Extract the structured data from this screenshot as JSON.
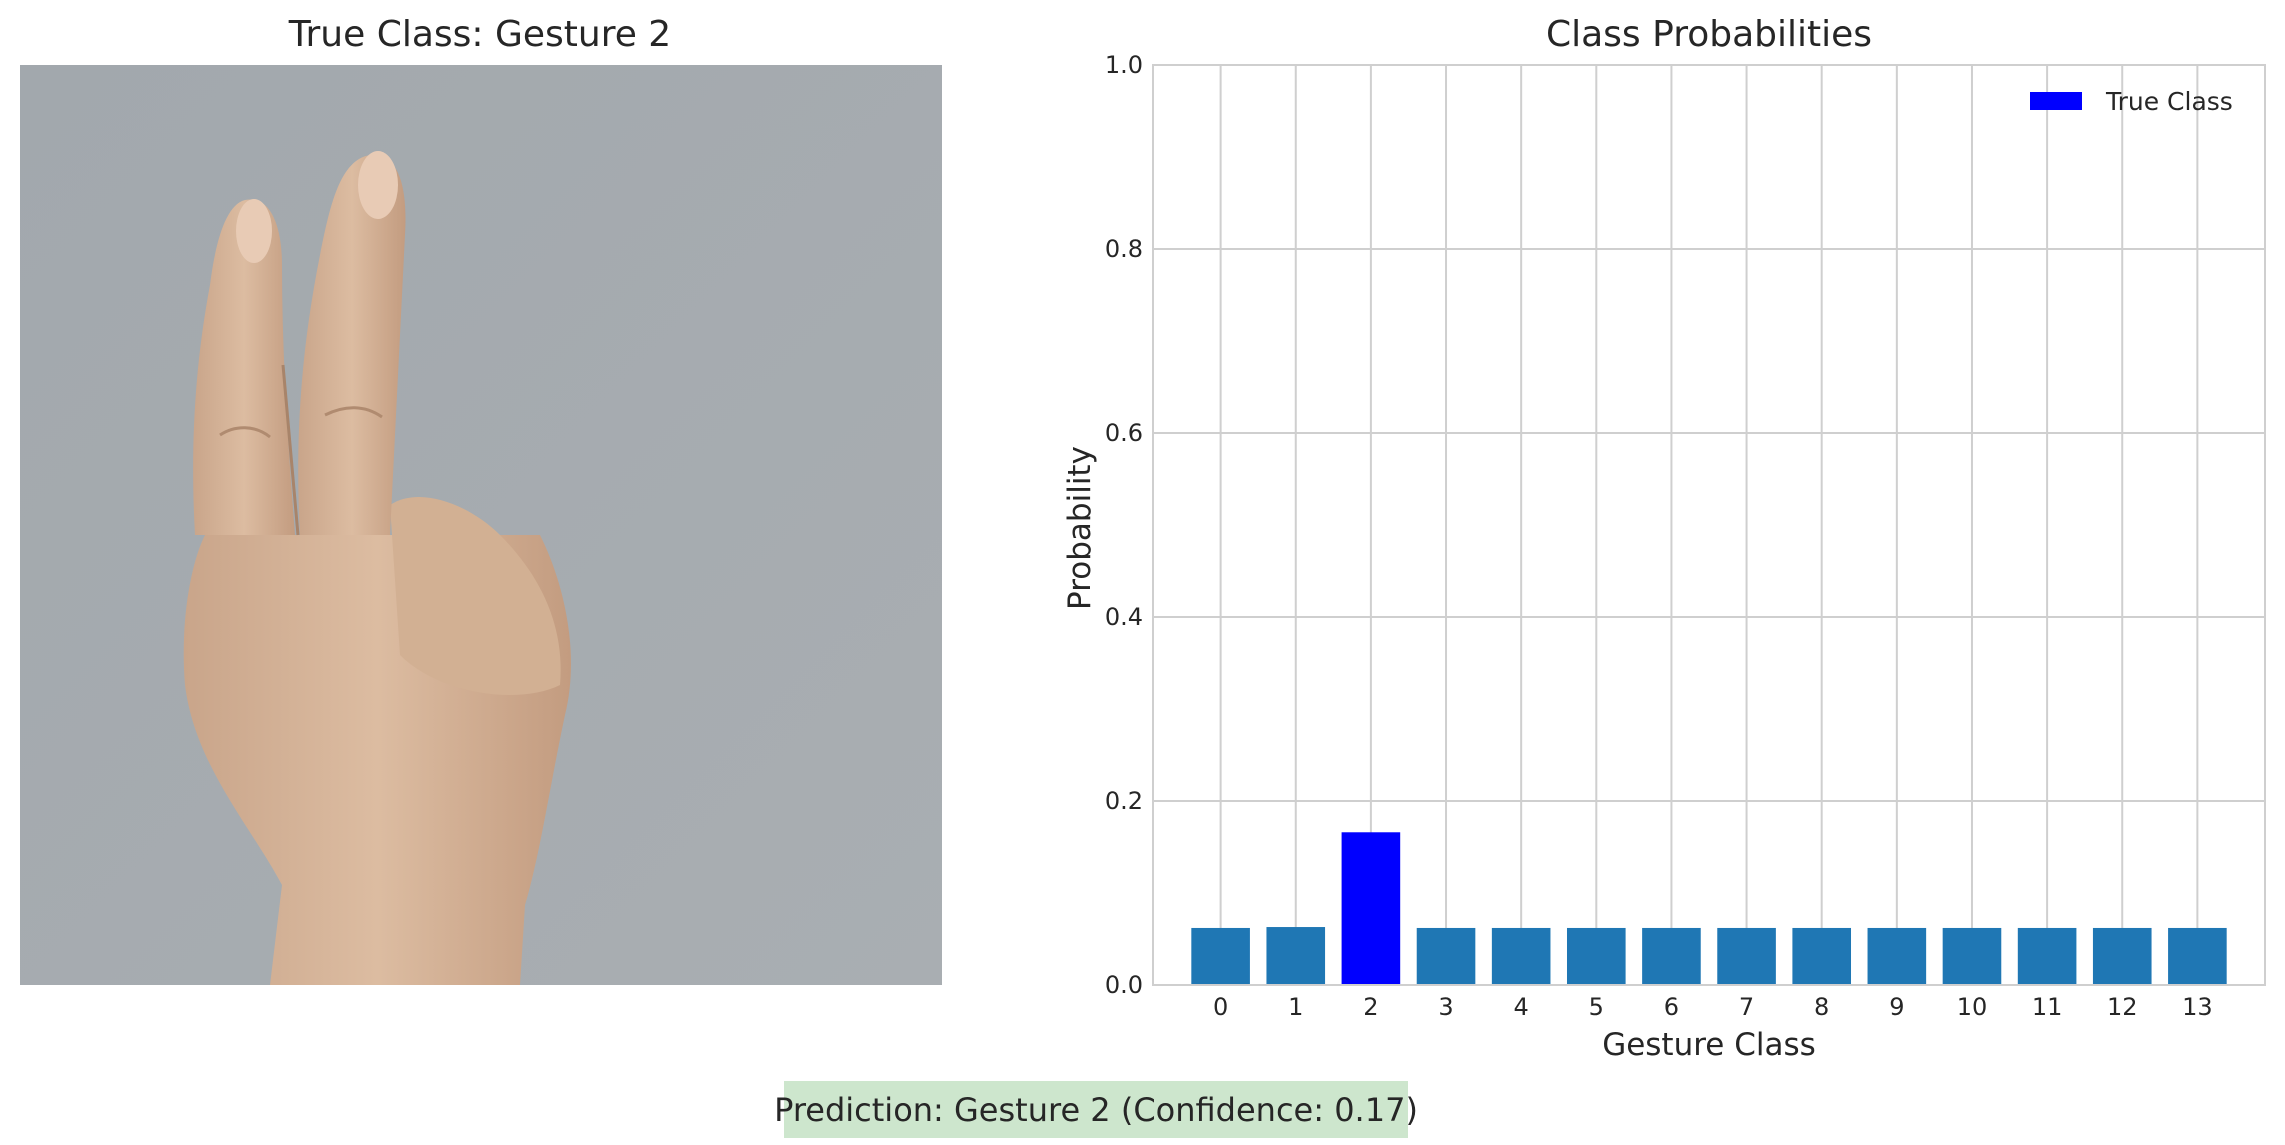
{
  "image_panel": {
    "title": "True Class: Gesture 2"
  },
  "prediction": {
    "text": "Prediction: Gesture 2 (Confidence: 0.17)",
    "box_color": "#cde6cd"
  },
  "chart_data": {
    "type": "bar",
    "title": "Class Probabilities",
    "xlabel": "Gesture Class",
    "ylabel": "Probability",
    "categories": [
      "0",
      "1",
      "2",
      "3",
      "4",
      "5",
      "6",
      "7",
      "8",
      "9",
      "10",
      "11",
      "12",
      "13"
    ],
    "values": [
      0.062,
      0.063,
      0.166,
      0.062,
      0.062,
      0.062,
      0.062,
      0.062,
      0.062,
      0.062,
      0.062,
      0.062,
      0.062,
      0.062
    ],
    "ylim": [
      0,
      1.0
    ],
    "yticks": [
      "0.0",
      "0.2",
      "0.4",
      "0.6",
      "0.8",
      "1.0"
    ],
    "highlight_index": 2,
    "bar_color": "#1f77b4",
    "highlight_color": "#0000ff",
    "legend": [
      {
        "label": "True Class",
        "color": "#0000ff"
      }
    ],
    "legend_position": "top-right",
    "grid": true
  }
}
